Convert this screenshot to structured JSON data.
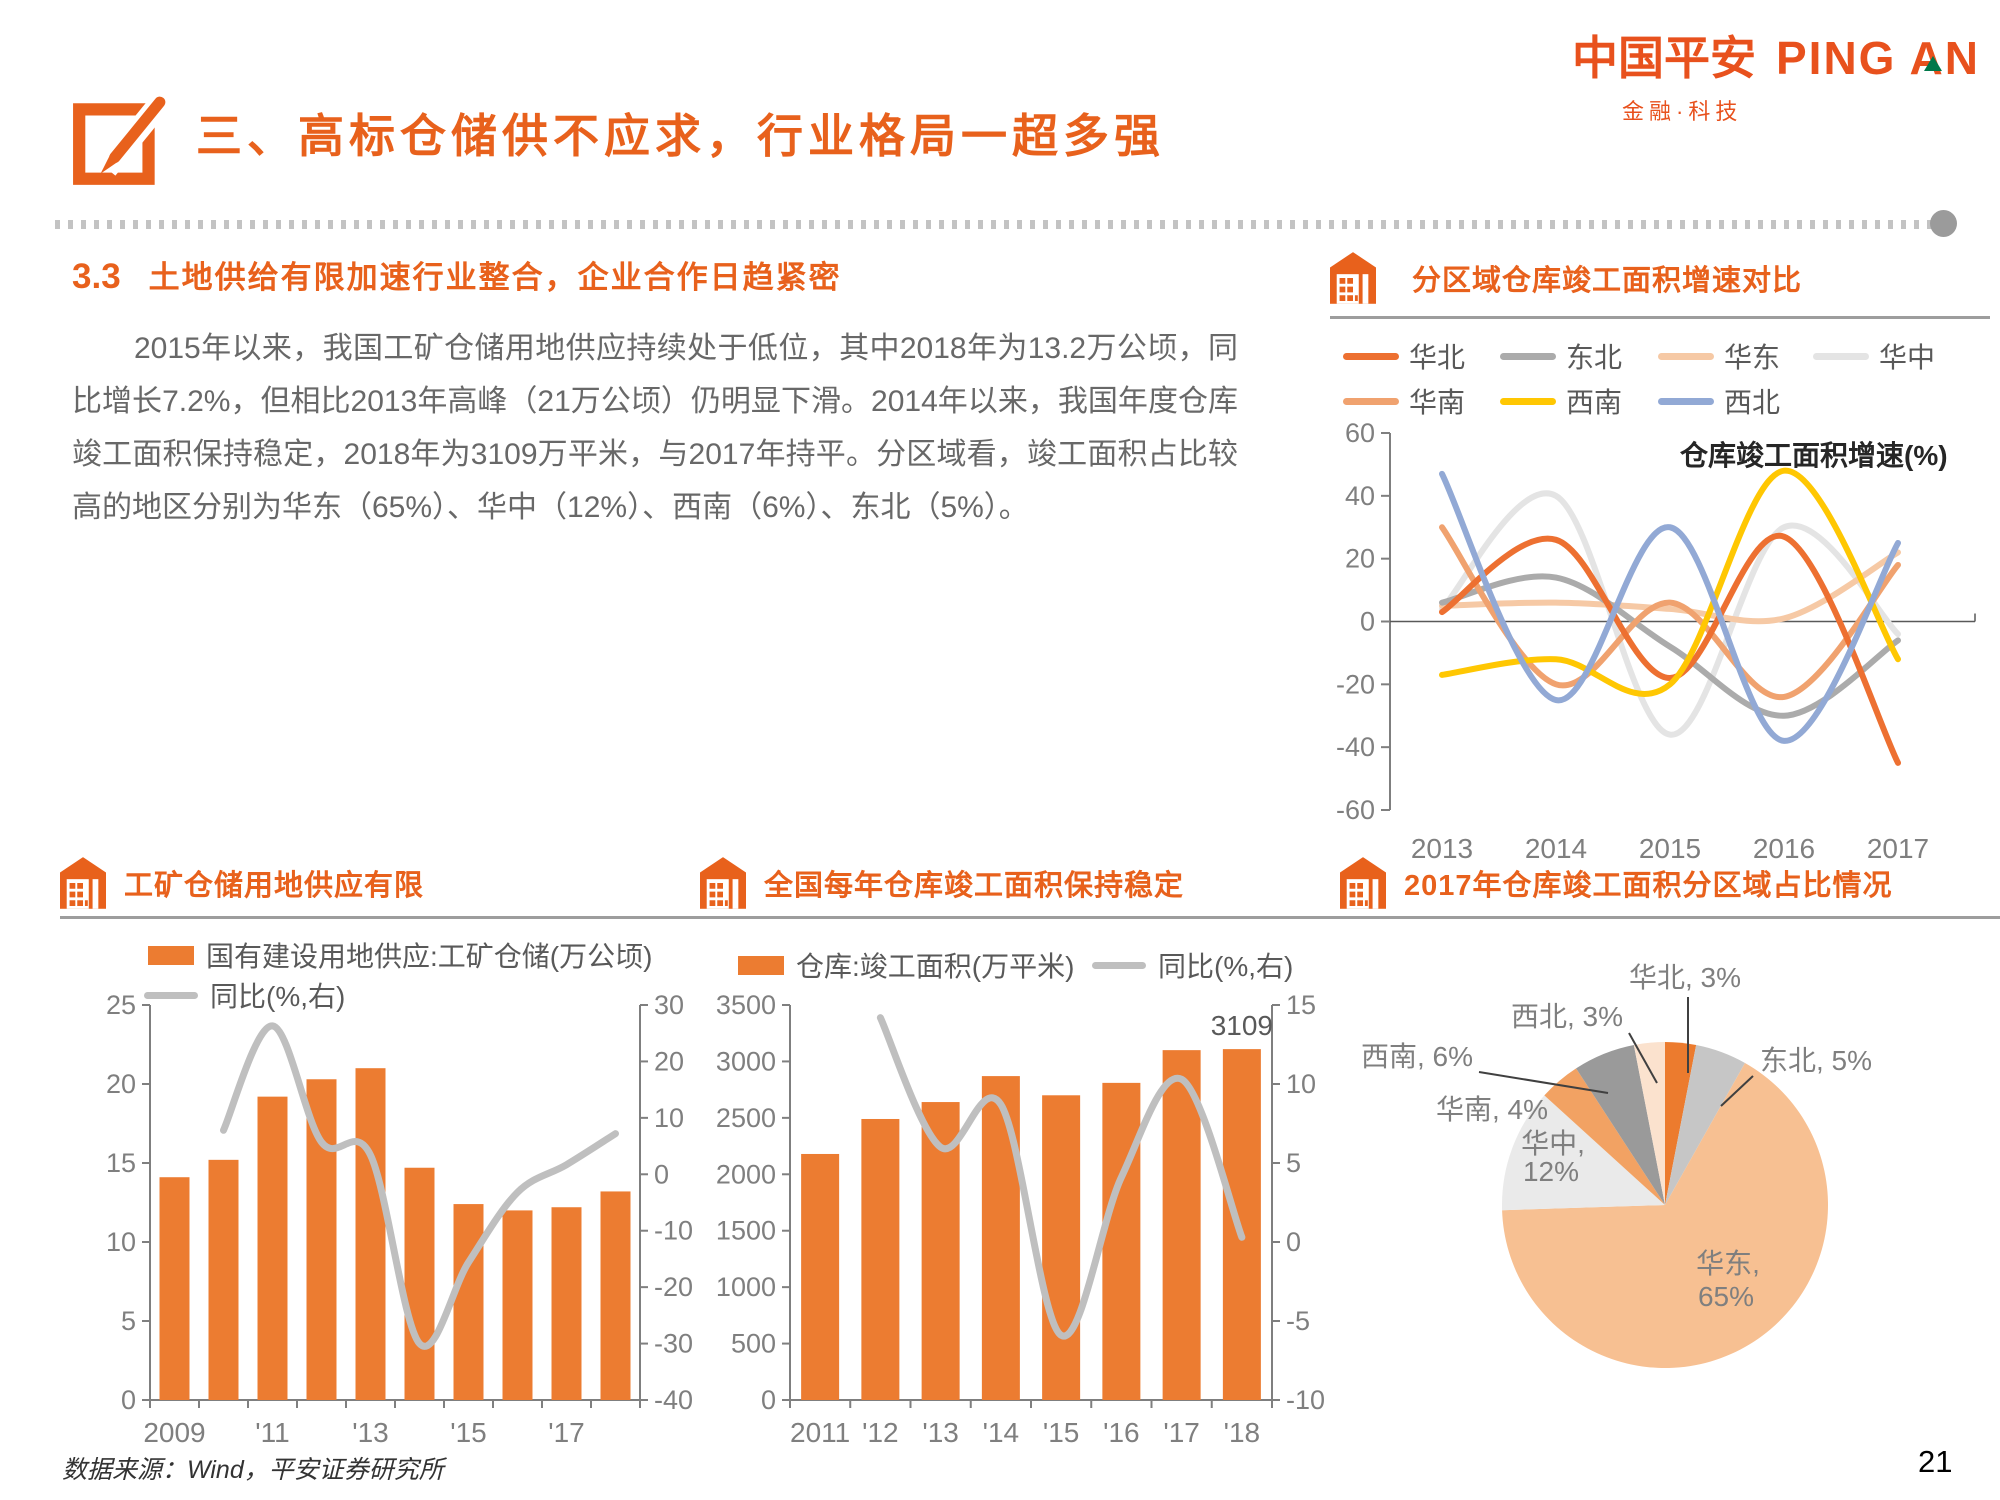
{
  "logo": {
    "cn": "中国平安",
    "en": "PING AN",
    "subtitle": "金融·科技"
  },
  "title": "三、高标仓储供不应求，行业格局一超多强",
  "section": {
    "number": "3.3",
    "heading": "土地供给有限加速行业整合，企业合作日趋紧密",
    "paragraph": "2015年以来，我国工矿仓储用地供应持续处于低位，其中2018年为13.2万公顷，同比增长7.2%，但相比2013年高峰（21万公顷）仍明显下滑。2014年以来，我国年度仓库竣工面积保持稳定，2018年为3109万平米，与2017年持平。分区域看，竣工面积占比较高的地区分别为华东（65%）、华中（12%）、西南（6%）、东北（5%）。"
  },
  "footer": {
    "source": "数据来源：Wind，平安证券研究所",
    "page": "21"
  },
  "chart_data": [
    {
      "type": "line",
      "title": "分区域仓库竣工面积增速对比",
      "annotation": "仓库竣工面积增速(%)",
      "x": [
        "2013",
        "2014",
        "2015",
        "2016",
        "2017"
      ],
      "ylim": [
        -60,
        60
      ],
      "ytick": 20,
      "grid": false,
      "legend_position": "top",
      "series": [
        {
          "name": "华北",
          "color": "#ED7031",
          "values": [
            3,
            26,
            -18,
            27,
            -45
          ]
        },
        {
          "name": "东北",
          "color": "#ABABAB",
          "values": [
            6,
            14,
            -8,
            -30,
            -6
          ]
        },
        {
          "name": "华东",
          "color": "#F6C9A5",
          "values": [
            5,
            6,
            4,
            1,
            22
          ]
        },
        {
          "name": "华中",
          "color": "#E4E4E4",
          "values": [
            4,
            40,
            -36,
            30,
            -4
          ]
        },
        {
          "name": "华南",
          "color": "#F0A26F",
          "values": [
            30,
            -20,
            6,
            -24,
            18
          ]
        },
        {
          "name": "西南",
          "color": "#FFC702",
          "values": [
            -17,
            -12,
            -20,
            48,
            -12
          ]
        },
        {
          "name": "西北",
          "color": "#92A9D5",
          "values": [
            47,
            -25,
            30,
            -38,
            25
          ]
        }
      ],
      "legend_rows": [
        [
          0,
          1,
          2,
          3
        ],
        [
          4,
          5,
          6
        ]
      ]
    },
    {
      "type": "bar-line",
      "title": "工矿仓储用地供应有限",
      "bar_legend": "国有建设用地供应:工矿仓储(万公顷)",
      "line_legend": "同比(%,右)",
      "categories": [
        "2009",
        "2010",
        "2011",
        "2012",
        "2013",
        "2014",
        "2015",
        "2016",
        "2017",
        "2018"
      ],
      "bars": [
        14.1,
        15.2,
        19.2,
        20.3,
        21.0,
        14.7,
        12.4,
        12.0,
        12.2,
        13.2
      ],
      "bar_color": "#EC7C31",
      "line": {
        "start_index": 1,
        "values": [
          7.8,
          26.3,
          5.7,
          3.4,
          -30.0,
          -15.6,
          -3.2,
          1.7,
          7.2
        ],
        "color": "#BFBFBF"
      },
      "left_axis": {
        "min": 0,
        "max": 25,
        "step": 5
      },
      "right_axis": {
        "min": -40,
        "max": 30,
        "step": 10
      },
      "x_labels": [
        {
          "text": "2009",
          "i": 0
        },
        {
          "text": "'11",
          "i": 2
        },
        {
          "text": "'13",
          "i": 4
        },
        {
          "text": "'15",
          "i": 6
        },
        {
          "text": "'17",
          "i": 8
        }
      ]
    },
    {
      "type": "bar-line",
      "title": "全国每年仓库竣工面积保持稳定",
      "bar_legend": "仓库:竣工面积(万平米)",
      "line_legend": "同比(%,右)",
      "categories": [
        "2011",
        "2012",
        "2013",
        "2014",
        "2015",
        "2016",
        "2017",
        "2018"
      ],
      "bars": [
        2180,
        2490,
        2640,
        2870,
        2700,
        2810,
        3100,
        3109
      ],
      "bar_color": "#EC7C31",
      "bar_label": {
        "index": 7,
        "text": "3109"
      },
      "line": {
        "start_index": 1,
        "values": [
          14.2,
          6.0,
          8.7,
          -5.9,
          4.1,
          10.3,
          0.3
        ],
        "color": "#BFBFBF"
      },
      "left_axis": {
        "min": 0,
        "max": 3500,
        "step": 500
      },
      "right_axis": {
        "min": -10,
        "max": 15,
        "step": 5
      },
      "x_labels": [
        {
          "text": "2011",
          "i": 0
        },
        {
          "text": "'12",
          "i": 1
        },
        {
          "text": "'13",
          "i": 2
        },
        {
          "text": "'14",
          "i": 3
        },
        {
          "text": "'15",
          "i": 4
        },
        {
          "text": "'16",
          "i": 5
        },
        {
          "text": "'17",
          "i": 6
        },
        {
          "text": "'18",
          "i": 7
        }
      ]
    },
    {
      "type": "pie",
      "title": "2017年仓库竣工面积分区域占比情况",
      "slices": [
        {
          "name": "华北",
          "pct": 3,
          "color": "#EC7B2E"
        },
        {
          "name": "东北",
          "pct": 5,
          "color": "#C6C6C6"
        },
        {
          "name": "华东",
          "pct": 65,
          "color": "#F7C092"
        },
        {
          "name": "华中",
          "pct": 12,
          "color": "#EAEAEA"
        },
        {
          "name": "华南",
          "pct": 4,
          "color": "#F2A263"
        },
        {
          "name": "西南",
          "pct": 6,
          "color": "#9A9A9A"
        },
        {
          "name": "西北",
          "pct": 3,
          "color": "#FBE2CE"
        }
      ]
    }
  ]
}
